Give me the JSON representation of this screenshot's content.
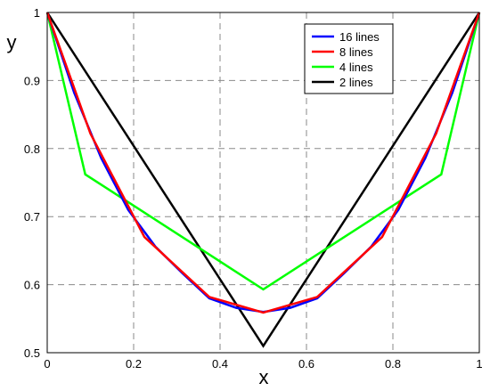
{
  "chart_data": {
    "type": "line",
    "title": "",
    "xlabel": "x",
    "ylabel": "y",
    "xlim": [
      0,
      1
    ],
    "ylim": [
      0.5,
      1
    ],
    "xticks": [
      "0",
      "0.2",
      "0.4",
      "0.6",
      "0.8",
      "1"
    ],
    "yticks": [
      "0.5",
      "0.6",
      "0.7",
      "0.8",
      "0.9",
      "1"
    ],
    "grid": true,
    "legend_position": "top-right",
    "series": [
      {
        "name": "16 lines",
        "color": "#0000ff",
        "x": [
          0,
          0.0625,
          0.125,
          0.1875,
          0.25,
          0.3125,
          0.375,
          0.4375,
          0.5,
          0.5625,
          0.625,
          0.6875,
          0.75,
          0.8125,
          0.875,
          0.9375,
          1
        ],
        "y": [
          1.0,
          0.882,
          0.786,
          0.71,
          0.656,
          0.617,
          0.58,
          0.566,
          0.56,
          0.566,
          0.58,
          0.617,
          0.656,
          0.71,
          0.786,
          0.882,
          1.0
        ]
      },
      {
        "name": "8 lines",
        "color": "#ff0000",
        "x": [
          0,
          0.1,
          0.225,
          0.375,
          0.5,
          0.625,
          0.775,
          0.9,
          1
        ],
        "y": [
          1.0,
          0.822,
          0.67,
          0.582,
          0.559,
          0.582,
          0.67,
          0.822,
          1.0
        ]
      },
      {
        "name": "4 lines",
        "color": "#00ff00",
        "x": [
          0,
          0.088,
          0.5,
          0.912,
          1
        ],
        "y": [
          1.0,
          0.762,
          0.593,
          0.762,
          1.0
        ]
      },
      {
        "name": "2 lines",
        "color": "#000000",
        "x": [
          0,
          0.5,
          1
        ],
        "y": [
          1.0,
          0.51,
          1.0
        ]
      }
    ]
  }
}
